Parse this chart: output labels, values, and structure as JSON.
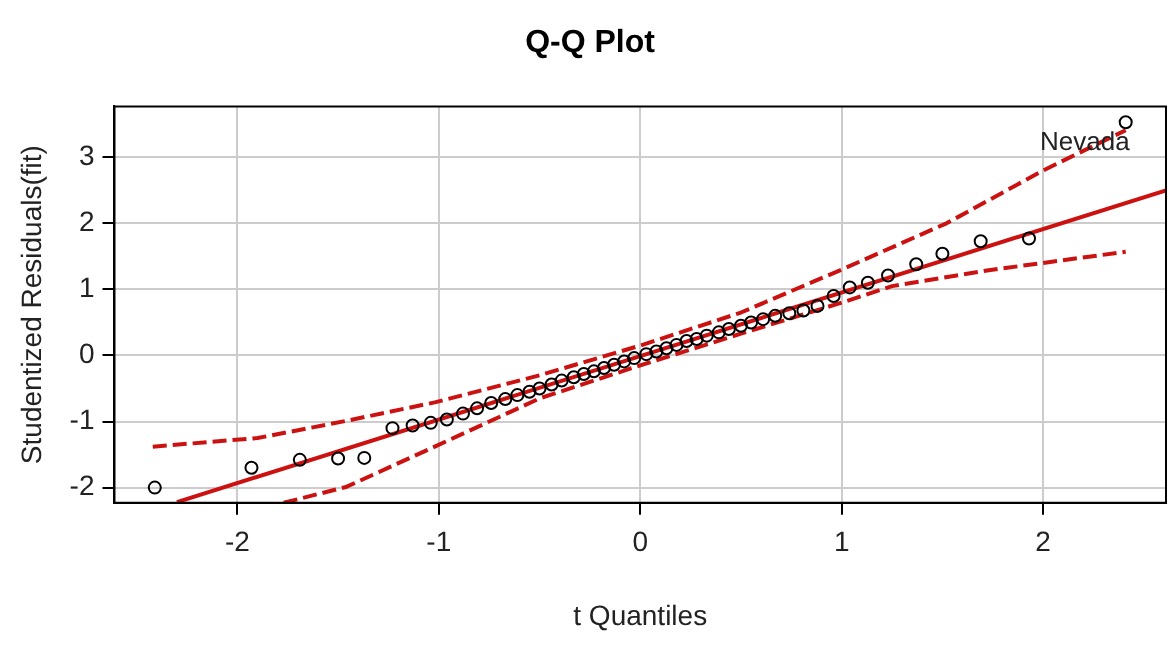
{
  "chart_data": {
    "type": "scatter",
    "title": "Q-Q Plot",
    "xlabel": "t Quantiles",
    "ylabel": "Studentized Residuals(fit)",
    "xlim": [
      -2.61,
      2.61
    ],
    "xticks": [
      -2,
      -1,
      0,
      1,
      2
    ],
    "ylim": [
      -2.23,
      3.77
    ],
    "yticks": [
      -2,
      -1,
      0,
      1,
      2,
      3
    ],
    "grid": true,
    "legend": false,
    "annotations": [
      {
        "text": "Nevada",
        "x": 2.41,
        "y": 3.53
      }
    ],
    "series": [
      {
        "type": "scatter",
        "color": "#000000",
        "marker": "circle",
        "x": [
          -2.41,
          -1.93,
          -1.69,
          -1.5,
          -1.37,
          -1.23,
          -1.13,
          -1.04,
          -0.96,
          -0.88,
          -0.81,
          -0.74,
          -0.67,
          -0.61,
          -0.55,
          -0.5,
          -0.44,
          -0.39,
          -0.33,
          -0.28,
          -0.23,
          -0.18,
          -0.13,
          -0.08,
          -0.03,
          0.03,
          0.08,
          0.13,
          0.18,
          0.23,
          0.28,
          0.33,
          0.39,
          0.44,
          0.5,
          0.55,
          0.61,
          0.67,
          0.74,
          0.81,
          0.88,
          0.96,
          1.04,
          1.13,
          1.23,
          1.37,
          1.5,
          1.69,
          1.93,
          2.41
        ],
        "values": [
          -2.0,
          -1.7,
          -1.58,
          -1.56,
          -1.55,
          -1.1,
          -1.06,
          -1.02,
          -0.97,
          -0.88,
          -0.8,
          -0.72,
          -0.66,
          -0.6,
          -0.55,
          -0.5,
          -0.44,
          -0.38,
          -0.33,
          -0.28,
          -0.24,
          -0.19,
          -0.14,
          -0.09,
          -0.04,
          0.02,
          0.06,
          0.11,
          0.16,
          0.22,
          0.25,
          0.3,
          0.35,
          0.4,
          0.45,
          0.5,
          0.55,
          0.6,
          0.64,
          0.68,
          0.75,
          0.9,
          1.03,
          1.1,
          1.21,
          1.38,
          1.54,
          1.73,
          1.77,
          3.53
        ]
      },
      {
        "type": "line",
        "color": "#cc1111",
        "line_style": "solid",
        "marker": "none",
        "x": [
          -2.3,
          2.61
        ],
        "values": [
          -2.22,
          2.5
        ]
      },
      {
        "type": "line",
        "color": "#cc1111",
        "line_style": "dashed",
        "marker": "none",
        "x": [
          -2.42,
          -1.9,
          -1.46,
          -1.02,
          -0.5,
          0,
          0.5,
          1.0,
          1.52,
          2.0,
          2.41
        ],
        "values": [
          -1.38,
          -1.25,
          -0.99,
          -0.71,
          -0.3,
          0.15,
          0.65,
          1.3,
          2.0,
          2.8,
          3.41
        ]
      },
      {
        "type": "line",
        "color": "#cc1111",
        "line_style": "dashed",
        "marker": "none",
        "x": [
          -1.77,
          -1.46,
          -1.02,
          -0.5,
          0,
          0.5,
          1.0,
          1.25,
          1.73,
          2.41
        ],
        "values": [
          -2.23,
          -1.99,
          -1.38,
          -0.65,
          -0.15,
          0.33,
          0.8,
          1.05,
          1.29,
          1.57
        ]
      }
    ]
  }
}
